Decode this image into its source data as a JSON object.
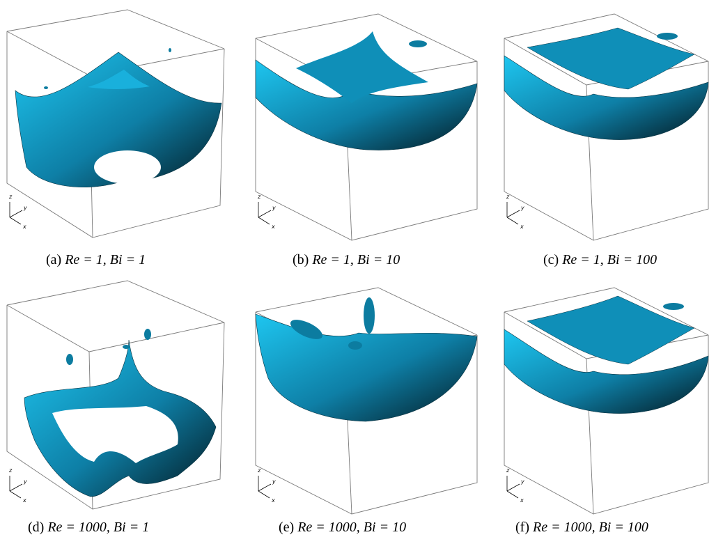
{
  "figure": {
    "panels": [
      {
        "tag": "(a)",
        "math": "Re = 1, Bi = 1"
      },
      {
        "tag": "(b)",
        "math": "Re = 1, Bi = 10"
      },
      {
        "tag": "(c)",
        "math": "Re = 1, Bi = 100"
      },
      {
        "tag": "(d)",
        "math": "Re = 1000, Bi = 1"
      },
      {
        "tag": "(e)",
        "math": "Re = 1000, Bi = 10"
      },
      {
        "tag": "(f)",
        "math": "Re = 1000, Bi = 100"
      }
    ],
    "axis_labels": {
      "z": "z",
      "y": "y",
      "x": "x"
    },
    "colors": {
      "surface": "#1ab3dc",
      "surface_dark": "#05303f",
      "edge": "#7a7a7a"
    }
  }
}
